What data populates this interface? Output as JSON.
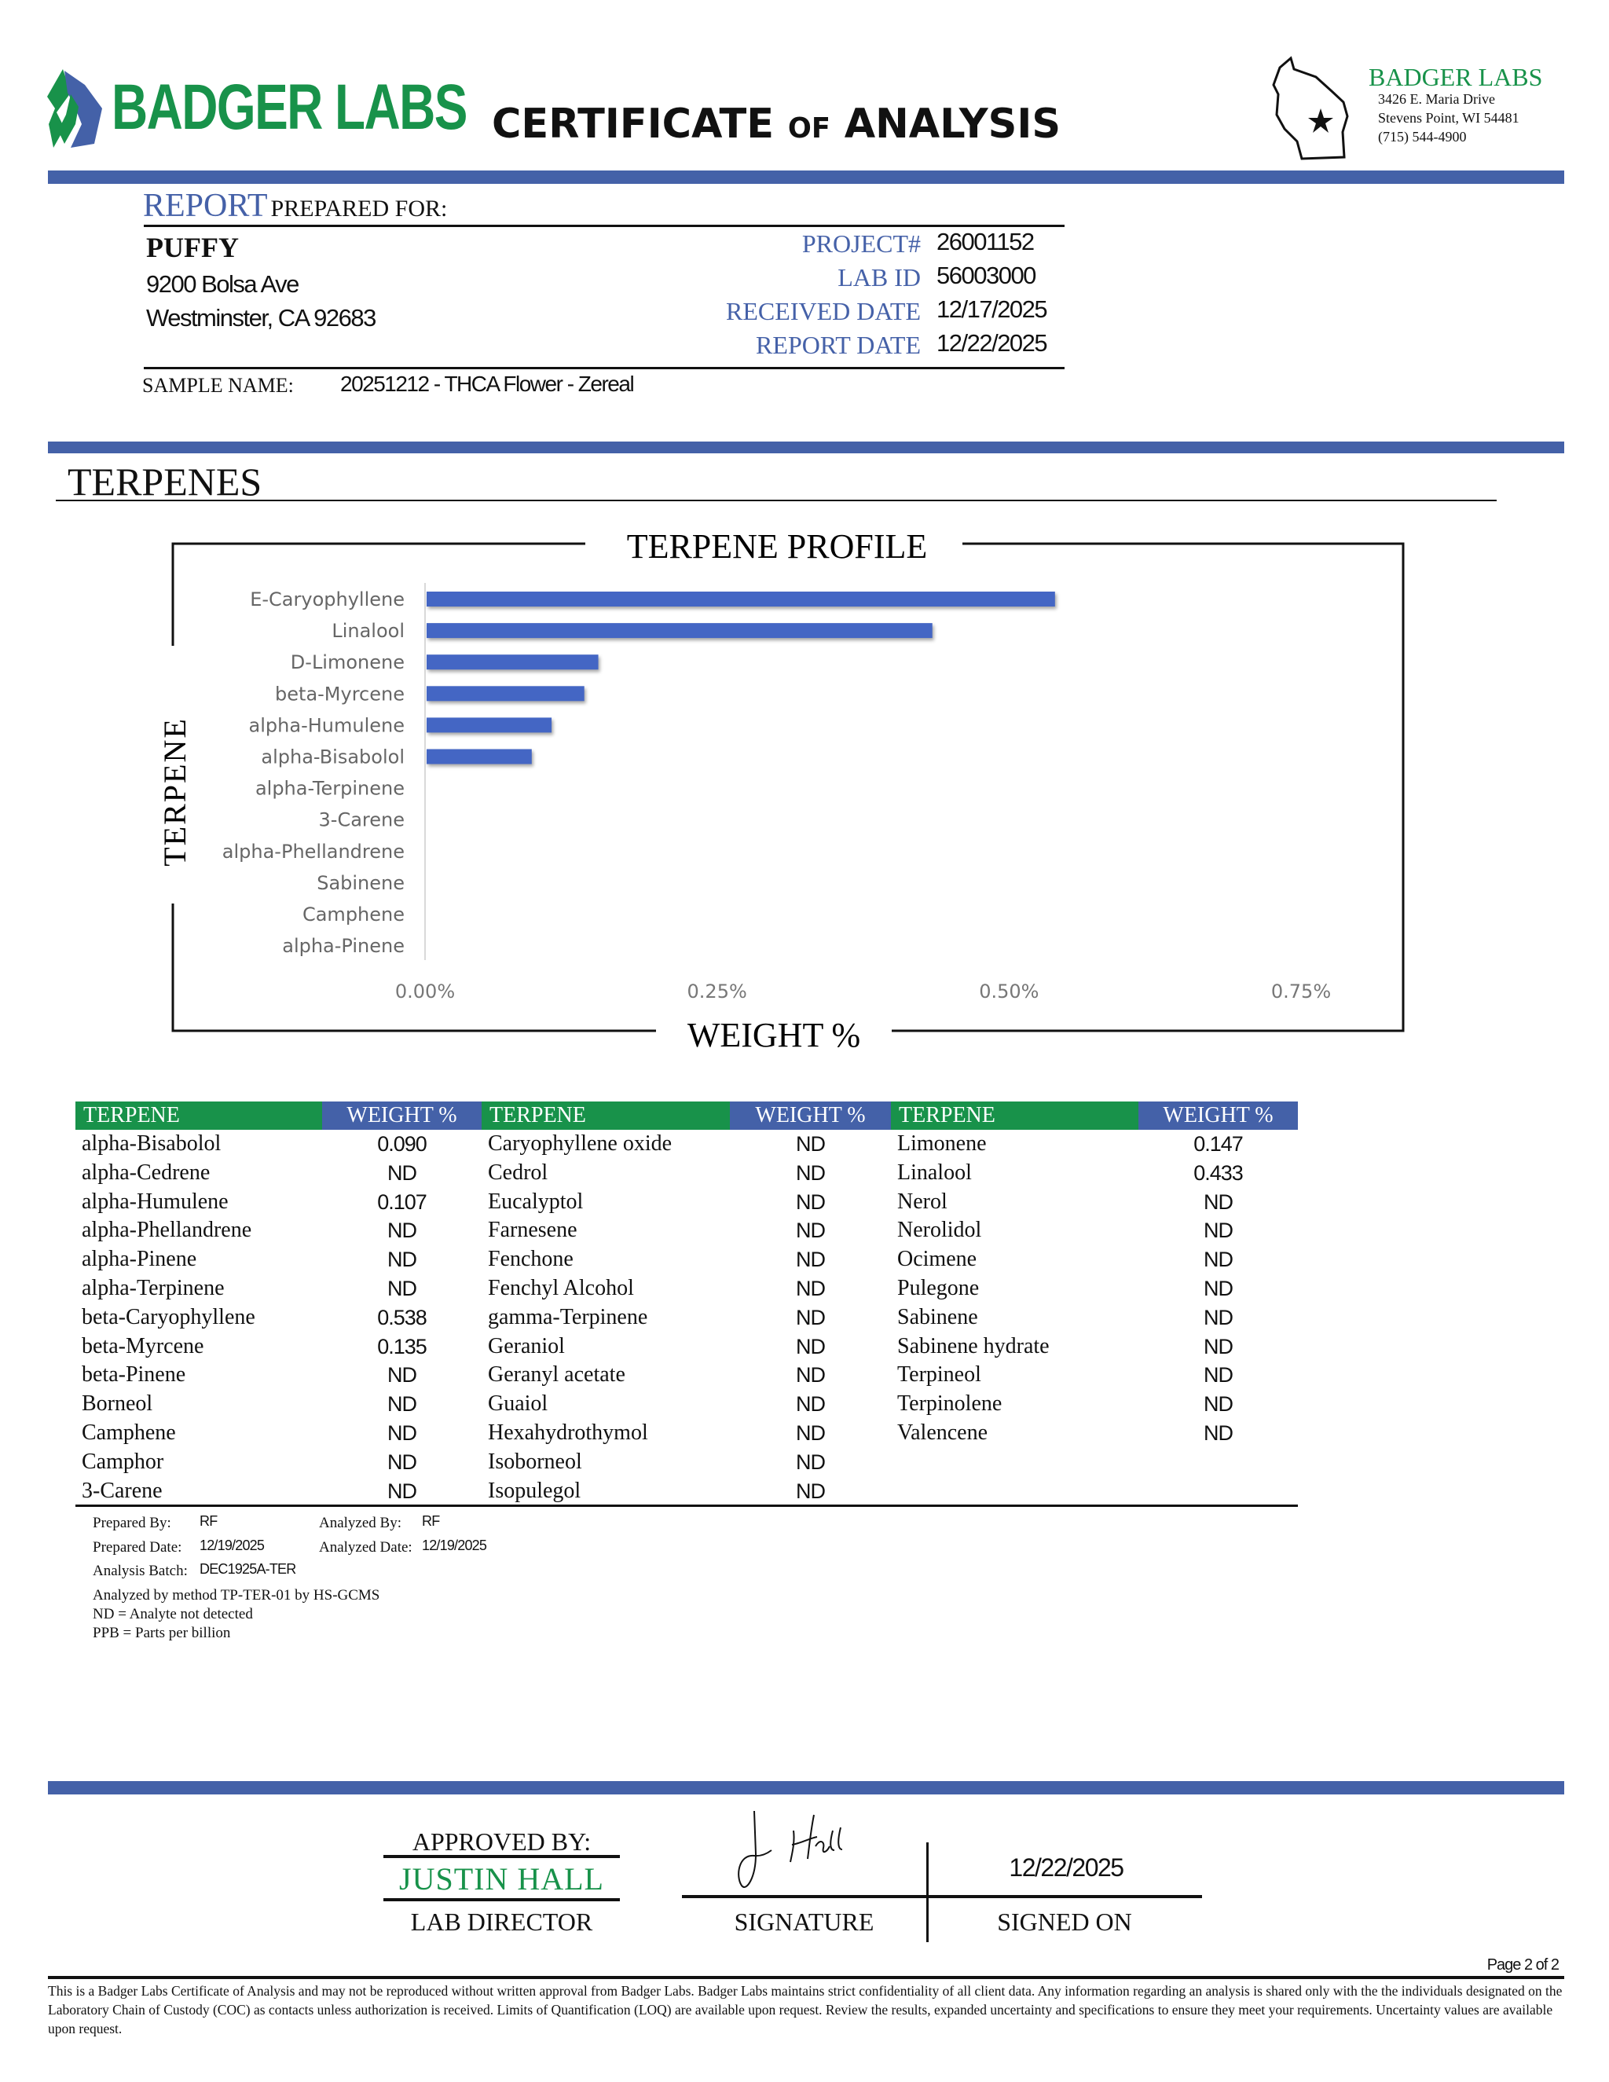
{
  "header": {
    "logo_text": "BADGER LABS",
    "title_main": "CERTIFICATE",
    "title_of": "OF",
    "title_end": "ANALYSIS",
    "lab": {
      "name": "BADGER LABS",
      "address1": "3426 E. Maria Drive",
      "address2": "Stevens Point, WI 54481",
      "phone": "(715) 544-4900"
    }
  },
  "report": {
    "prepared_for_a": "REPORT",
    "prepared_for_b": "PREPARED FOR:",
    "client": "PUFFY",
    "address1": "9200 Bolsa Ave",
    "address2": "Westminster, CA 92683",
    "fields": [
      {
        "label": "PROJECT#",
        "value": "26001152"
      },
      {
        "label": "LAB ID",
        "value": "56003000"
      },
      {
        "label": "RECEIVED DATE",
        "value": "12/17/2025"
      },
      {
        "label": "REPORT DATE",
        "value": "12/22/2025"
      }
    ],
    "sample_label": "SAMPLE NAME:",
    "sample_name": "20251212 - THCA Flower - Zereal"
  },
  "section_title": "TERPENES",
  "chart_data": {
    "type": "bar",
    "orientation": "horizontal",
    "title": "TERPENE PROFILE",
    "xlabel": "WEIGHT %",
    "ylabel": "TERPENE",
    "categories": [
      "E-Caryophyllene",
      "Linalool",
      "D-Limonene",
      "beta-Myrcene",
      "alpha-Humulene",
      "alpha-Bisabolol",
      "alpha-Terpinene",
      "3-Carene",
      "alpha-Phellandrene",
      "Sabinene",
      "Camphene",
      "alpha-Pinene"
    ],
    "values": [
      0.538,
      0.433,
      0.147,
      0.135,
      0.107,
      0.09,
      0,
      0,
      0,
      0,
      0,
      0
    ],
    "xticks": [
      "0.00%",
      "0.25%",
      "0.50%",
      "0.75%"
    ],
    "xlim": [
      0,
      0.75
    ],
    "grid": false,
    "bar_color": "#4466c4"
  },
  "table": {
    "headers": [
      "TERPENE",
      "WEIGHT %",
      "TERPENE",
      "WEIGHT %",
      "TERPENE",
      "WEIGHT %"
    ],
    "rows": [
      [
        "alpha-Bisabolol",
        "0.090",
        "Caryophyllene oxide",
        "ND",
        "Limonene",
        "0.147"
      ],
      [
        "alpha-Cedrene",
        "ND",
        "Cedrol",
        "ND",
        "Linalool",
        "0.433"
      ],
      [
        "alpha-Humulene",
        "0.107",
        "Eucalyptol",
        "ND",
        "Nerol",
        "ND"
      ],
      [
        "alpha-Phellandrene",
        "ND",
        "Farnesene",
        "ND",
        "Nerolidol",
        "ND"
      ],
      [
        "alpha-Pinene",
        "ND",
        "Fenchone",
        "ND",
        "Ocimene",
        "ND"
      ],
      [
        "alpha-Terpinene",
        "ND",
        "Fenchyl Alcohol",
        "ND",
        "Pulegone",
        "ND"
      ],
      [
        "beta-Caryophyllene",
        "0.538",
        "gamma-Terpinene",
        "ND",
        "Sabinene",
        "ND"
      ],
      [
        "beta-Myrcene",
        "0.135",
        "Geraniol",
        "ND",
        "Sabinene hydrate",
        "ND"
      ],
      [
        "beta-Pinene",
        "ND",
        "Geranyl acetate",
        "ND",
        "Terpineol",
        "ND"
      ],
      [
        "Borneol",
        "ND",
        "Guaiol",
        "ND",
        "Terpinolene",
        "ND"
      ],
      [
        "Camphene",
        "ND",
        "Hexahydrothymol",
        "ND",
        "Valencene",
        "ND"
      ],
      [
        "Camphor",
        "ND",
        "Isoborneol",
        "ND",
        "",
        ""
      ],
      [
        "3-Carene",
        "ND",
        "Isopulegol",
        "ND",
        "",
        ""
      ]
    ]
  },
  "notes": {
    "prepared_by_label": "Prepared By:",
    "prepared_by": "RF",
    "analyzed_by_label": "Analyzed By:",
    "analyzed_by": "RF",
    "prepared_date_label": "Prepared Date:",
    "prepared_date": "12/19/2025",
    "analyzed_date_label": "Analyzed Date:",
    "analyzed_date": "12/19/2025",
    "batch_label": "Analysis Batch:",
    "batch": "DEC1925A-TER",
    "method": "Analyzed by method TP-TER-01 by HS-GCMS",
    "nd": "ND = Analyte not detected",
    "ppb": "PPB = Parts per billion"
  },
  "approval": {
    "approved_by": "APPROVED BY:",
    "name": "JUSTIN HALL",
    "role": "LAB DIRECTOR",
    "signature_label": "SIGNATURE",
    "signed_on_label": "SIGNED ON",
    "signed_date": "12/22/2025",
    "signature_text": "J. Hall"
  },
  "footer": {
    "page": "Page 2 of 2",
    "disclaimer": "This is a Badger Labs Certificate of Analysis and may not be reproduced without written approval from Badger Labs. Badger Labs maintains strict confidentiality of all client data. Any information regarding an analysis is shared only with the the individuals designated on the Laboratory Chain of Custody (COC) as contacts unless authorization is received. Limits of Quantification (LOQ) are available upon request. Review the results, expanded uncertainty and specifications to ensure they meet your requirements. Uncertainty values are available upon request."
  },
  "colors": {
    "brand_blue": "#4461a8",
    "brand_green": "#18924a"
  }
}
